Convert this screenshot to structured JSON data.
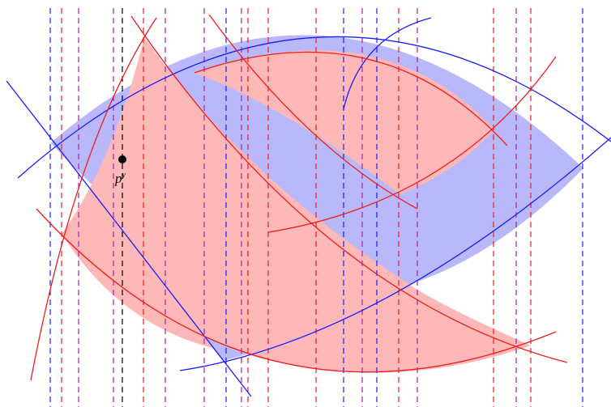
{
  "colors": {
    "blue": "#1a1aff",
    "red": "#ee1c1c",
    "purple": "#a61ea6",
    "black": "#000000",
    "blue_fill": "#b8b8fa",
    "red_fill": "#ffb8b8"
  },
  "point": {
    "label": "p",
    "superscript": "y"
  }
}
